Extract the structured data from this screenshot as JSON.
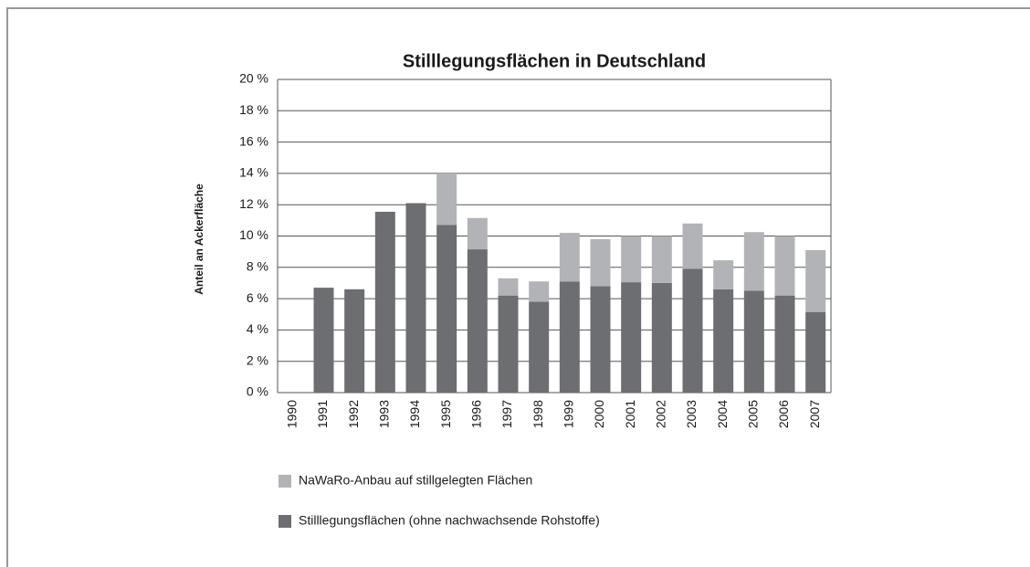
{
  "chart_data": {
    "type": "bar",
    "stacked": true,
    "title": "Stilllegungsflächen in Deutschland",
    "y_label": "Anteil an Ackerfläche",
    "categories": [
      "1990",
      "1991",
      "1992",
      "1993",
      "1994",
      "1995",
      "1996",
      "1997",
      "1998",
      "1999",
      "2000",
      "2001",
      "2002",
      "2003",
      "2004",
      "2005",
      "2006",
      "2007"
    ],
    "series": [
      {
        "name": "NaWaRo-Anbau auf stillgelegten Flächen",
        "color": "#b1b3b6",
        "values": [
          0,
          0,
          0,
          0,
          0,
          3.3,
          2.0,
          1.1,
          1.3,
          3.1,
          3.0,
          2.95,
          3.0,
          2.9,
          1.85,
          3.75,
          3.8,
          3.95
        ]
      },
      {
        "name": "Stilllegungsflächen (ohne nachwachsende Rohstoffe)",
        "color": "#6d6e71",
        "values": [
          0,
          6.7,
          6.6,
          11.55,
          12.1,
          10.7,
          9.15,
          6.2,
          5.8,
          7.1,
          6.8,
          7.05,
          7.0,
          7.9,
          6.6,
          6.5,
          6.2,
          5.15
        ]
      }
    ],
    "ylim": [
      0,
      20
    ],
    "yticks": [
      {
        "value": 0,
        "label": "0 %"
      },
      {
        "value": 2,
        "label": "2 %"
      },
      {
        "value": 4,
        "label": "4 %"
      },
      {
        "value": 6,
        "label": "6 %"
      },
      {
        "value": 8,
        "label": "8 %"
      },
      {
        "value": 10,
        "label": "10 %"
      },
      {
        "value": 12,
        "label": "12 %"
      },
      {
        "value": 14,
        "label": "14 %"
      },
      {
        "value": 16,
        "label": "16 %"
      },
      {
        "value": 18,
        "label": "18 %"
      },
      {
        "value": 20,
        "label": "20 %"
      }
    ],
    "grid": true
  }
}
